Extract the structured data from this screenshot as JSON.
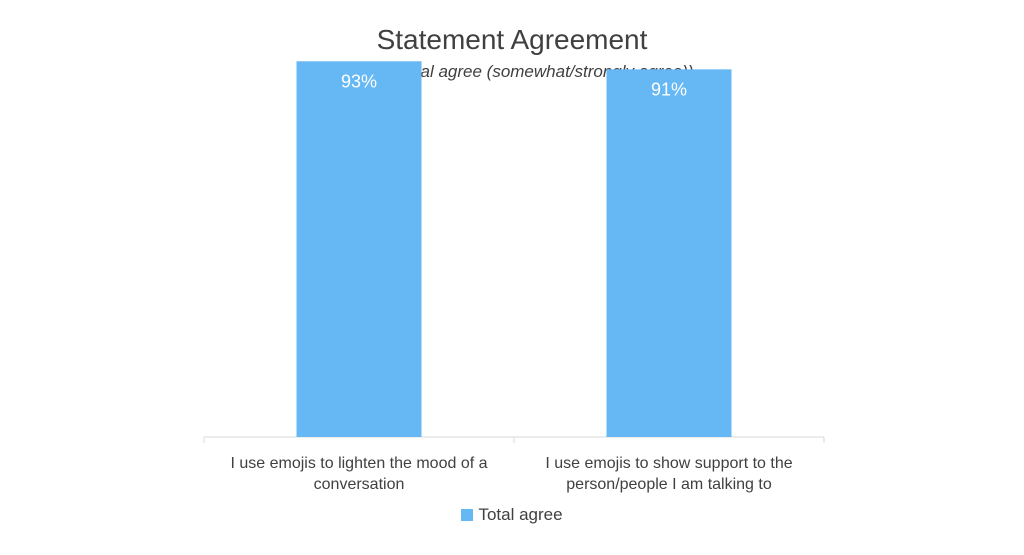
{
  "chart_data": {
    "type": "bar",
    "title": "Statement Agreement",
    "subtitle": "(Shown: Total agree (somewhat/strongly agree))",
    "categories": [
      "I use emojis to lighten the mood of a conversation",
      "I use emojis to show support to the person/people I am talking to"
    ],
    "category_lines": [
      [
        "I use emojis to lighten the mood of a",
        "conversation"
      ],
      [
        "I use emojis to show support to the",
        "person/people I am talking to"
      ]
    ],
    "series": [
      {
        "name": "Total agree",
        "values": [
          93,
          91
        ],
        "labels": [
          "93%",
          "91%"
        ],
        "color": "#66b8f5"
      }
    ],
    "ylim": [
      0,
      100
    ],
    "grid": false,
    "legend": "bottom-center"
  }
}
